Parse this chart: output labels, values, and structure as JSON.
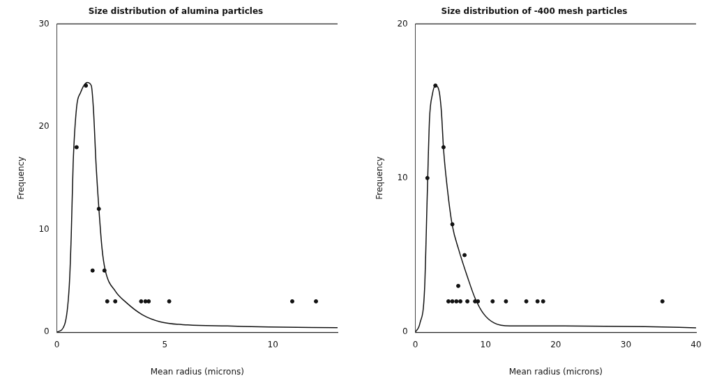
{
  "chart_data": [
    {
      "type": "scatter",
      "title": "Size distribution of alumina particles",
      "xlabel": "Mean radius (microns)",
      "ylabel": "Frequency",
      "xlim": [
        0,
        13
      ],
      "xticks": [
        0,
        5,
        10
      ],
      "ylim": [
        0,
        30
      ],
      "yticks": [
        0,
        10,
        20,
        30
      ],
      "grid": false,
      "legend": false,
      "series": [
        {
          "marker": "circle",
          "color": "#111111",
          "x": [
            0.91,
            1.34,
            1.94,
            1.65,
            2.2,
            2.33,
            2.7,
            3.9,
            4.1,
            4.25,
            5.2,
            10.9,
            12.0
          ],
          "values": [
            18,
            24,
            12,
            6,
            6,
            3,
            3,
            3,
            3,
            3,
            3,
            3,
            3
          ]
        },
        {
          "type": "line",
          "marker": "none",
          "color": "#111111",
          "x": [
            0,
            0.35,
            0.57,
            0.66,
            0.75,
            0.91,
            1.09,
            1.4,
            1.59,
            1.69,
            1.81,
            1.94,
            2.09,
            2.24,
            2.7,
            3.2,
            3.95,
            4.8,
            6.06,
            7.9,
            9.8,
            13
          ],
          "values": [
            0,
            0.7,
            4.5,
            9.3,
            16.4,
            21.9,
            23.3,
            24.3,
            24.0,
            21.7,
            16.4,
            12.1,
            8.1,
            6.0,
            4.0,
            2.9,
            1.7,
            1.0,
            0.7,
            0.6,
            0.5,
            0.43
          ]
        }
      ]
    },
    {
      "type": "scatter",
      "title": "Size distribution of -400 mesh particles",
      "xlabel": "Mean radius (microns)",
      "ylabel": "Frequency",
      "xlim": [
        0,
        40
      ],
      "xticks": [
        0,
        10,
        20,
        30,
        40
      ],
      "ylim": [
        0,
        20
      ],
      "yticks": [
        0,
        10,
        20
      ],
      "grid": false,
      "legend": false,
      "series": [
        {
          "marker": "circle",
          "color": "#111111",
          "x": [
            1.7,
            2.84,
            4.0,
            5.26,
            7.0,
            6.1,
            4.7,
            5.26,
            5.83,
            6.4,
            7.4,
            8.5,
            8.9,
            11.0,
            12.9,
            15.8,
            17.4,
            18.2,
            35.2
          ],
          "values": [
            10,
            16,
            12,
            7,
            5,
            3,
            2,
            2,
            2,
            2,
            2,
            2,
            2,
            2,
            2,
            2,
            2,
            2,
            2
          ]
        },
        {
          "type": "line",
          "marker": "none",
          "color": "#111111",
          "x": [
            0,
            0.65,
            1.3,
            1.7,
            2.0,
            2.4,
            2.84,
            3.34,
            3.7,
            4.0,
            4.6,
            5.26,
            6.2,
            7.4,
            8.5,
            9.7,
            11.2,
            13.5,
            21.2,
            32.7,
            40
          ],
          "values": [
            0,
            0.6,
            2.8,
            9.2,
            13.8,
            15.4,
            16.0,
            15.7,
            14.3,
            11.9,
            9.1,
            6.9,
            5.3,
            3.6,
            2.2,
            1.2,
            0.6,
            0.4,
            0.4,
            0.36,
            0.28
          ]
        }
      ]
    }
  ]
}
